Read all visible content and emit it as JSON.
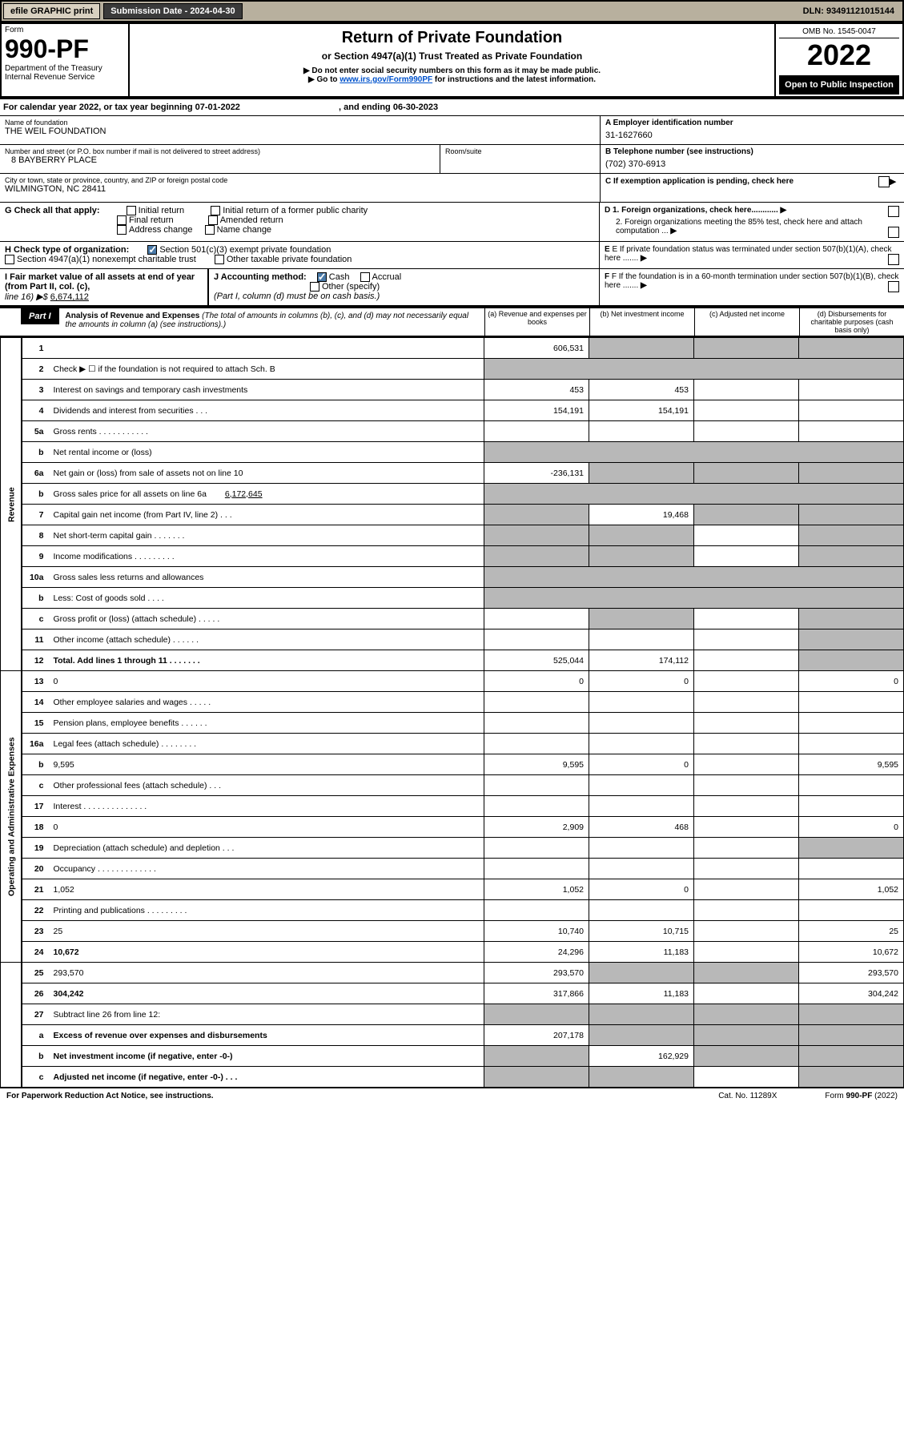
{
  "topbar": {
    "efile": "efile GRAPHIC print",
    "submission": "Submission Date - 2024-04-30",
    "dln": "DLN: 93491121015144"
  },
  "header": {
    "form_label": "Form",
    "form_no": "990-PF",
    "dept": "Department of the Treasury\nInternal Revenue Service",
    "title": "Return of Private Foundation",
    "subtitle": "or Section 4947(a)(1) Trust Treated as Private Foundation",
    "instr1": "▶ Do not enter social security numbers on this form as it may be made public.",
    "instr2": "▶ Go to ",
    "instr2_link": "www.irs.gov/Form990PF",
    "instr2_tail": " for instructions and the latest information.",
    "omb": "OMB No. 1545-0047",
    "year": "2022",
    "open": "Open to Public Inspection"
  },
  "calendar": {
    "prefix": "For calendar year 2022, or tax year beginning ",
    "begin": "07-01-2022",
    "mid": ", and ending ",
    "end": "06-30-2023"
  },
  "address": {
    "name_lbl": "Name of foundation",
    "name": "THE WEIL FOUNDATION",
    "street_lbl": "Number and street (or P.O. box number if mail is not delivered to street address)",
    "street": "8 BAYBERRY PLACE",
    "room_lbl": "Room/suite",
    "city_lbl": "City or town, state or province, country, and ZIP or foreign postal code",
    "city": "WILMINGTON, NC  28411",
    "a_lbl": "A Employer identification number",
    "a_val": "31-1627660",
    "b_lbl": "B Telephone number (see instructions)",
    "b_val": "(702) 370-6913",
    "c_lbl": "C If exemption application is pending, check here"
  },
  "g": {
    "label": "G Check all that apply:",
    "initial": "Initial return",
    "final": "Final return",
    "address": "Address change",
    "initial_former": "Initial return of a former public charity",
    "amended": "Amended return",
    "name": "Name change"
  },
  "d": {
    "d1": "D 1. Foreign organizations, check here............",
    "d2": "2. Foreign organizations meeting the 85% test, check here and attach computation ..."
  },
  "h": {
    "label": "H Check type of organization:",
    "opt1": "Section 501(c)(3) exempt private foundation",
    "opt2": "Section 4947(a)(1) nonexempt charitable trust",
    "opt3": "Other taxable private foundation"
  },
  "e": {
    "text": "E If private foundation status was terminated under section 507(b)(1)(A), check here ......."
  },
  "i": {
    "label": "I Fair market value of all assets at end of year (from Part II, col. (c),",
    "line16": "line 16) ▶$",
    "val": "6,674,112"
  },
  "j": {
    "label": "J Accounting method:",
    "cash": "Cash",
    "accrual": "Accrual",
    "other": "Other (specify)",
    "note": "(Part I, column (d) must be on cash basis.)"
  },
  "f": {
    "text": "F If the foundation is in a 60-month termination under section 507(b)(1)(B), check here ......."
  },
  "part1": {
    "hdr": "Part I",
    "title": "Analysis of Revenue and Expenses",
    "note": "(The total of amounts in columns (b), (c), and (d) may not necessarily equal the amounts in column (a) (see instructions).)",
    "col_a": "(a) Revenue and expenses per books",
    "col_b": "(b) Net investment income",
    "col_c": "(c) Adjusted net income",
    "col_d": "(d) Disbursements for charitable purposes (cash basis only)"
  },
  "side_rev": "Revenue",
  "side_exp": "Operating and Administrative Expenses",
  "rows": [
    {
      "n": "1",
      "d": "",
      "a": "606,531",
      "b": "",
      "c": "",
      "sb": 1,
      "sc": 1,
      "sd": 1
    },
    {
      "n": "2",
      "d": "Check ▶ ☐ if the foundation is not required to attach Sch. B",
      "nb": 1
    },
    {
      "n": "3",
      "d": "Interest on savings and temporary cash investments",
      "a": "453",
      "b": "453"
    },
    {
      "n": "4",
      "d": "Dividends and interest from securities  .  .  .",
      "a": "154,191",
      "b": "154,191"
    },
    {
      "n": "5a",
      "d": "Gross rents   .  .  .  .  .  .  .  .  .  .  ."
    },
    {
      "n": "b",
      "d": "Net rental income or (loss)",
      "nb": 1
    },
    {
      "n": "6a",
      "d": "Net gain or (loss) from sale of assets not on line 10",
      "a": "-236,131",
      "sb": 1,
      "sc": 1,
      "sd": 1
    },
    {
      "n": "b",
      "d": "Gross sales price for all assets on line 6a",
      "inline": "6,172,645",
      "nb": 1
    },
    {
      "n": "7",
      "d": "Capital gain net income (from Part IV, line 2)  .  .  .",
      "sa": 1,
      "b": "19,468",
      "sc": 1,
      "sd": 1
    },
    {
      "n": "8",
      "d": "Net short-term capital gain  .  .  .  .  .  .  .",
      "sa": 1,
      "sb": 1,
      "sd": 1
    },
    {
      "n": "9",
      "d": "Income modifications  .  .  .  .  .  .  .  .  .",
      "sa": 1,
      "sb": 1,
      "sd": 1
    },
    {
      "n": "10a",
      "d": "Gross sales less returns and allowances",
      "nb": 1
    },
    {
      "n": "b",
      "d": "Less: Cost of goods sold  .  .  .  .",
      "nb": 1
    },
    {
      "n": "c",
      "d": "Gross profit or (loss) (attach schedule)  .  .  .  .  .",
      "sb": 1,
      "sd": 1
    },
    {
      "n": "11",
      "d": "Other income (attach schedule)  .  .  .  .  .  .",
      "sd": 1
    },
    {
      "n": "12",
      "d": "Total. Add lines 1 through 11  .  .  .  .  .  .  .",
      "bold": 1,
      "a": "525,044",
      "b": "174,112",
      "sd": 1
    },
    {
      "n": "13",
      "d": "0",
      "a": "0",
      "b": "0"
    },
    {
      "n": "14",
      "d": "Other employee salaries and wages  .  .  .  .  ."
    },
    {
      "n": "15",
      "d": "Pension plans, employee benefits  .  .  .  .  .  ."
    },
    {
      "n": "16a",
      "d": "Legal fees (attach schedule)  .  .  .  .  .  .  .  ."
    },
    {
      "n": "b",
      "d": "9,595",
      "a": "9,595",
      "b": "0"
    },
    {
      "n": "c",
      "d": "Other professional fees (attach schedule)  .  .  ."
    },
    {
      "n": "17",
      "d": "Interest  .  .  .  .  .  .  .  .  .  .  .  .  .  ."
    },
    {
      "n": "18",
      "d": "0",
      "a": "2,909",
      "b": "468"
    },
    {
      "n": "19",
      "d": "Depreciation (attach schedule) and depletion  .  .  .",
      "sd": 1
    },
    {
      "n": "20",
      "d": "Occupancy  .  .  .  .  .  .  .  .  .  .  .  .  ."
    },
    {
      "n": "21",
      "d": "1,052",
      "a": "1,052",
      "b": "0"
    },
    {
      "n": "22",
      "d": "Printing and publications  .  .  .  .  .  .  .  .  ."
    },
    {
      "n": "23",
      "d": "25",
      "a": "10,740",
      "b": "10,715"
    },
    {
      "n": "24",
      "d": "10,672",
      "bold": 1,
      "a": "24,296",
      "b": "11,183"
    },
    {
      "n": "25",
      "d": "293,570",
      "a": "293,570",
      "sb": 1,
      "sc": 1
    },
    {
      "n": "26",
      "d": "304,242",
      "bold": 1,
      "a": "317,866",
      "b": "11,183"
    },
    {
      "n": "27",
      "d": "Subtract line 26 from line 12:",
      "sa": 1,
      "sb": 1,
      "sc": 1,
      "sd": 1
    },
    {
      "n": "a",
      "d": "Excess of revenue over expenses and disbursements",
      "bold": 1,
      "a": "207,178",
      "sb": 1,
      "sc": 1,
      "sd": 1
    },
    {
      "n": "b",
      "d": "Net investment income (if negative, enter -0-)",
      "bold": 1,
      "sa": 1,
      "b": "162,929",
      "sc": 1,
      "sd": 1
    },
    {
      "n": "c",
      "d": "Adjusted net income (if negative, enter -0-)  .  .  .",
      "bold": 1,
      "sa": 1,
      "sb": 1,
      "sd": 1
    }
  ],
  "footer": {
    "left": "For Paperwork Reduction Act Notice, see instructions.",
    "mid": "Cat. No. 11289X",
    "right": "Form 990-PF (2022)"
  }
}
